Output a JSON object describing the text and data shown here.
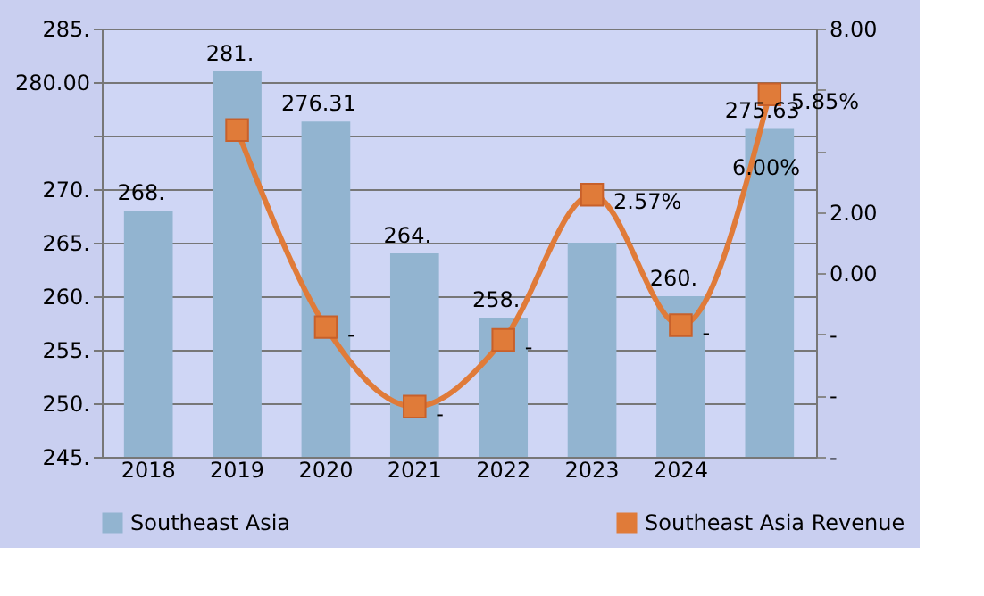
{
  "chart_data": {
    "type": "bar",
    "categories": [
      "2018",
      "2019",
      "2020",
      "2021",
      "2022",
      "2023",
      "2024",
      null
    ],
    "series": [
      {
        "name": "Southeast Asia",
        "color": "#92b4d0",
        "values": [
          268,
          281,
          276.31,
          264,
          258,
          265.0,
          260,
          275.63
        ],
        "value_labels": [
          "268.",
          "281.",
          "276.31",
          "264.",
          "258.",
          null,
          "260.",
          "275.63"
        ]
      },
      {
        "name": "Southeast Asia Revenue",
        "type": "line",
        "axis": "y2",
        "color": "#e07b39",
        "values": [
          null,
          4.68,
          -1.76,
          -4.36,
          -2.18,
          2.57,
          -1.7,
          5.85
        ],
        "value_labels": [
          null,
          null,
          "-",
          "-",
          "-",
          "2.57%",
          "-",
          "5.85%"
        ]
      }
    ],
    "ylim": [
      245,
      285
    ],
    "yticks": [
      {
        "value": 245,
        "label": "245."
      },
      {
        "value": 250,
        "label": "250."
      },
      {
        "value": 255,
        "label": "255."
      },
      {
        "value": 260,
        "label": "260."
      },
      {
        "value": 265,
        "label": "265."
      },
      {
        "value": 270,
        "label": "270."
      },
      {
        "value": 275,
        "label": null
      },
      {
        "value": 280,
        "label": "280.00"
      },
      {
        "value": 285,
        "label": "285."
      }
    ],
    "y2lim": [
      -6,
      8
    ],
    "y2ticks": [
      {
        "value": -6,
        "label": "-"
      },
      {
        "value": -4,
        "label": "-"
      },
      {
        "value": -2,
        "label": "-"
      },
      {
        "value": 0,
        "label": "0.00"
      },
      {
        "value": 2,
        "label": "2.00"
      },
      {
        "value": 4,
        "label": null
      },
      {
        "value": 6,
        "label": null
      },
      {
        "value": 8,
        "label": "8.00"
      }
    ],
    "annotations": [
      "6.00%"
    ],
    "marker": "square",
    "grid": "y",
    "legend": "bottom"
  }
}
